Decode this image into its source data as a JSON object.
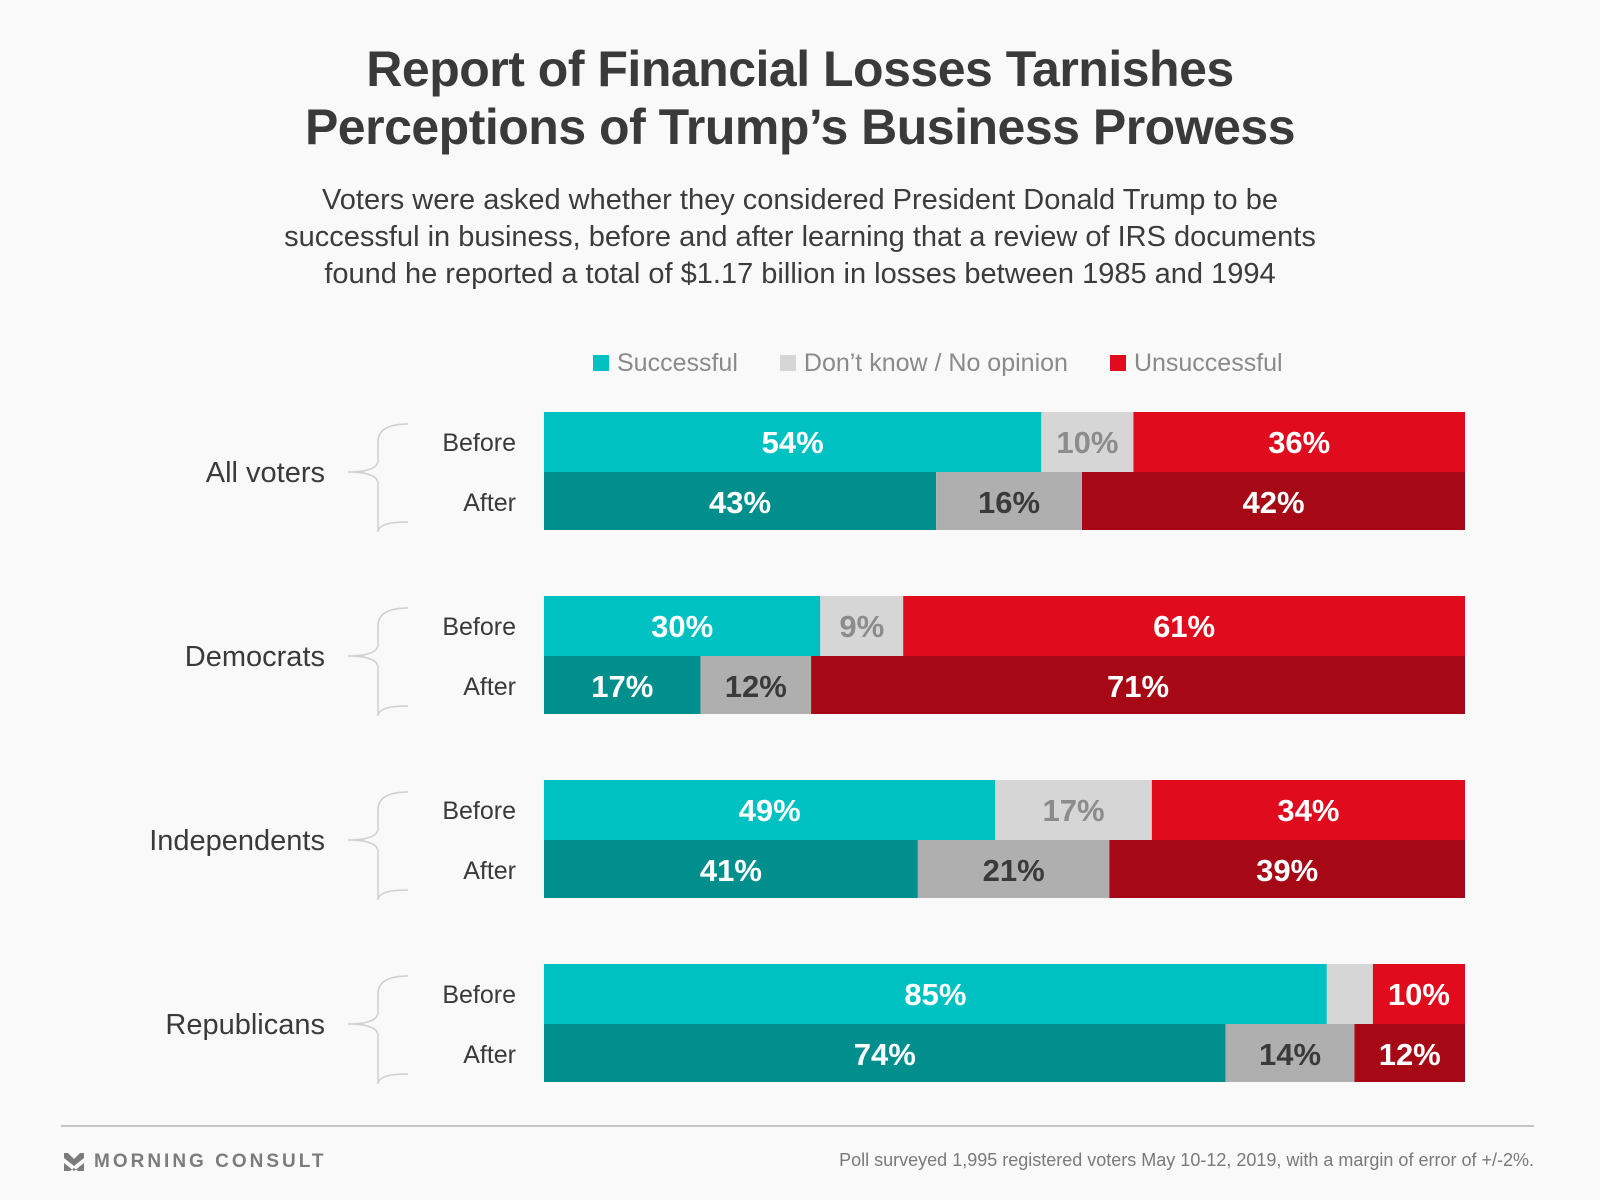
{
  "header": {
    "title_line1": "Report of Financial Losses Tarnishes",
    "title_line2": "Perceptions of Trump’s Business Prowess",
    "subtitle_line1": "Voters were asked whether they considered President Donald Trump to be",
    "subtitle_line2": "successful in business, before and after learning that a review of IRS documents",
    "subtitle_line3": "found he reported a total of $1.17 billion in losses between 1985 and 1994"
  },
  "footer": {
    "logo_text": "MORNING CONSULT",
    "logo_icon": "morning-consult-chevron-icon",
    "source_note": "Poll surveyed 1,995 registered voters May 10-12, 2019, with a margin of error of +/-2%."
  },
  "chart_data": {
    "type": "bar",
    "orientation": "horizontal",
    "stacked": true,
    "normalized_to": 100,
    "title": "Report of Financial Losses Tarnishes Perceptions of Trump’s Business Prowess",
    "xlabel": "",
    "ylabel": "",
    "xlim": [
      0,
      100
    ],
    "grid": false,
    "legend_position": "top",
    "series_names": [
      "Successful",
      "Don't know / No opinion",
      "Unsuccessful"
    ],
    "legend": [
      {
        "label": "Successful",
        "color": "#00c1c1"
      },
      {
        "label": "Don’t know / No opinion",
        "color": "#d6d6d6"
      },
      {
        "label": "Unsuccessful",
        "color": "#e00b1c"
      }
    ],
    "colors": {
      "before": [
        "#00c1c1",
        "#d6d6d6",
        "#e00b1c"
      ],
      "after": [
        "#008f8c",
        "#afafaf",
        "#a70815"
      ],
      "label_before": [
        "#ffffff",
        "#8c8c8c",
        "#ffffff"
      ],
      "label_after": [
        "#ffffff",
        "#3a3a3a",
        "#ffffff"
      ]
    },
    "groups": [
      {
        "name": "All voters",
        "rows": [
          {
            "label": "Before",
            "values": [
              54,
              10,
              36
            ],
            "labels": [
              "54%",
              "10%",
              "36%"
            ]
          },
          {
            "label": "After",
            "values": [
              43,
              16,
              42
            ],
            "labels": [
              "43%",
              "16%",
              "42%"
            ]
          }
        ]
      },
      {
        "name": "Democrats",
        "rows": [
          {
            "label": "Before",
            "values": [
              30,
              9,
              61
            ],
            "labels": [
              "30%",
              "9%",
              "61%"
            ]
          },
          {
            "label": "After",
            "values": [
              17,
              12,
              71
            ],
            "labels": [
              "17%",
              "12%",
              "71%"
            ]
          }
        ]
      },
      {
        "name": "Independents",
        "rows": [
          {
            "label": "Before",
            "values": [
              49,
              17,
              34
            ],
            "labels": [
              "49%",
              "17%",
              "34%"
            ]
          },
          {
            "label": "After",
            "values": [
              41,
              21,
              39
            ],
            "labels": [
              "41%",
              "21%",
              "39%"
            ]
          }
        ]
      },
      {
        "name": "Republicans",
        "rows": [
          {
            "label": "Before",
            "values": [
              85,
              5,
              10
            ],
            "labels": [
              "85%",
              "",
              "10%"
            ]
          },
          {
            "label": "After",
            "values": [
              74,
              14,
              12
            ],
            "labels": [
              "74%",
              "14%",
              "12%"
            ]
          }
        ]
      }
    ]
  }
}
